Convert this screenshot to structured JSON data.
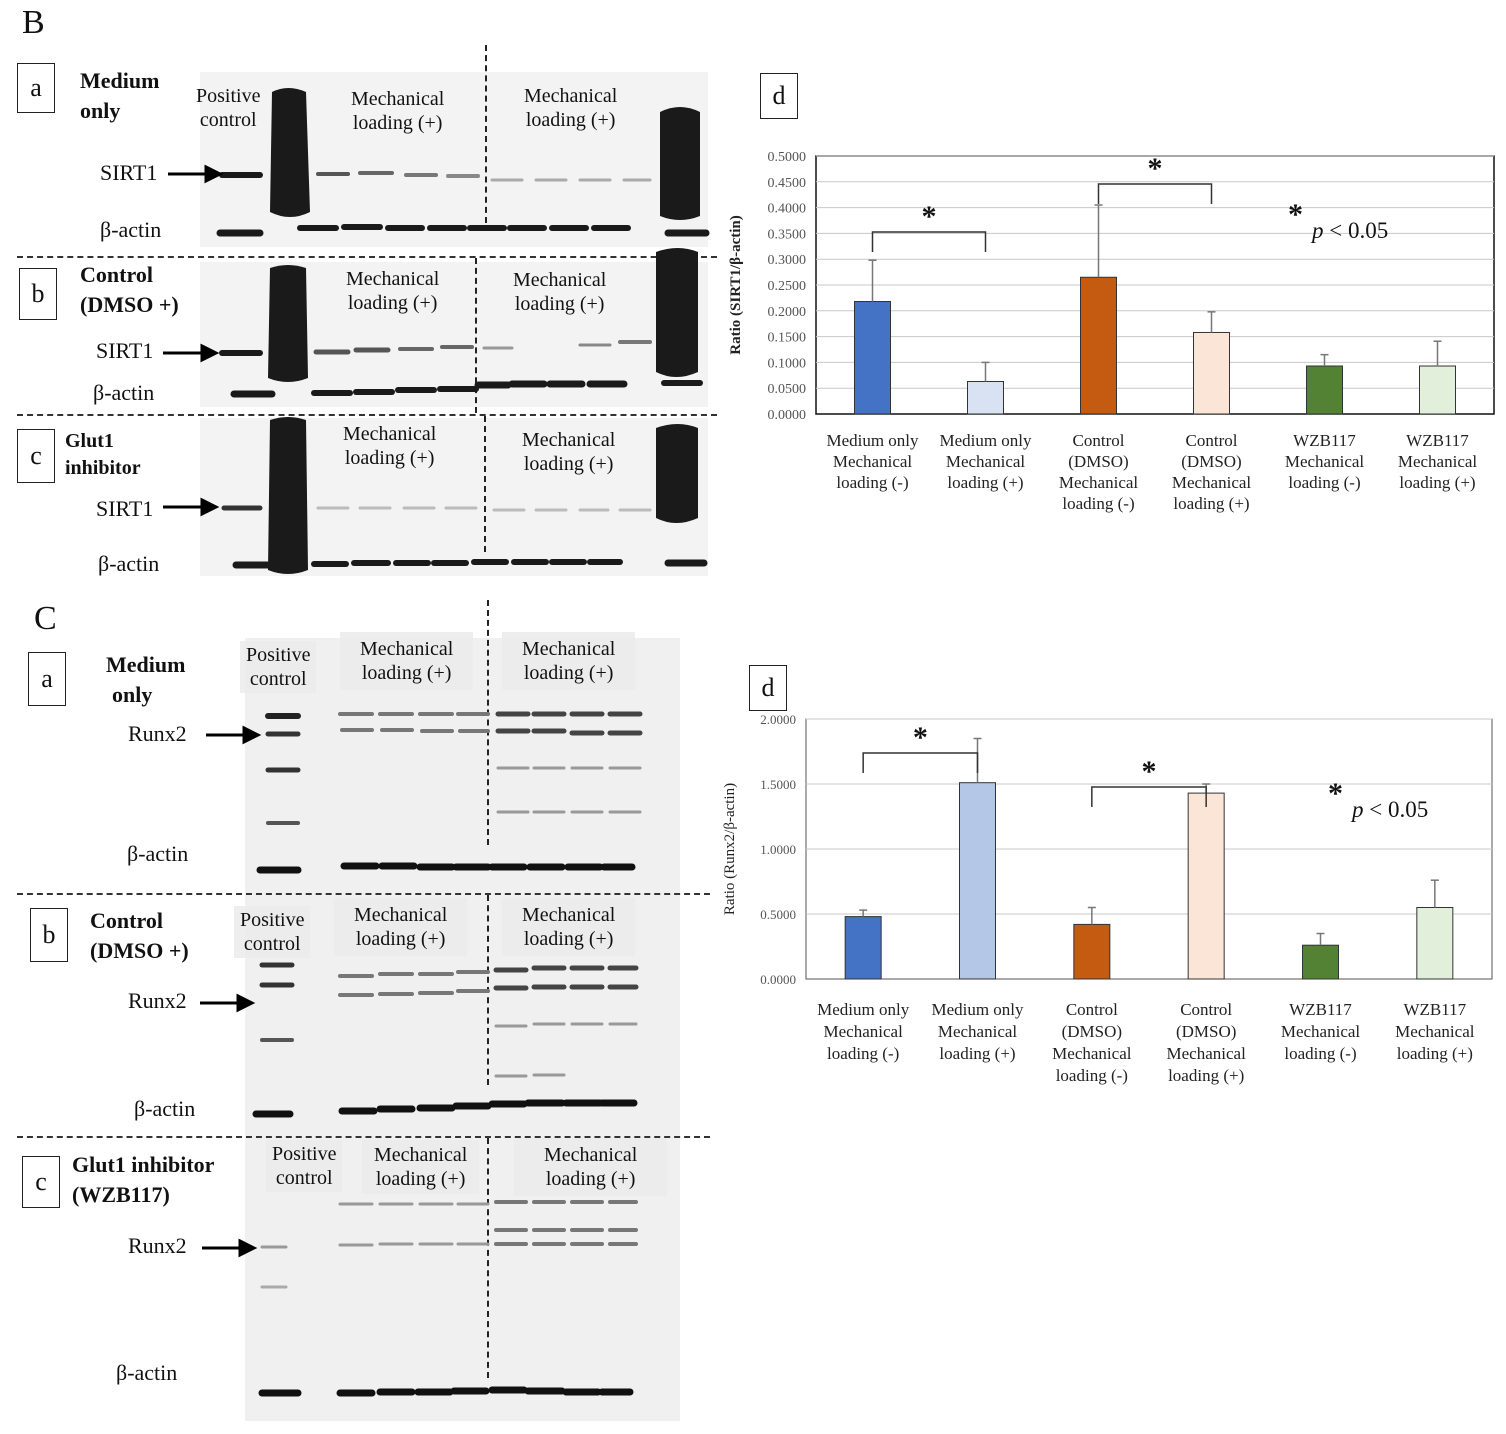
{
  "panels": {
    "B": {
      "letter": "B",
      "rows": [
        {
          "tag": "a",
          "condition": [
            "Medium",
            "only"
          ],
          "positive": [
            "Positive",
            "control"
          ],
          "left_group": [
            "Mechanical",
            "loading (+)"
          ],
          "right_group": [
            "Mechanical",
            "loading (+)"
          ],
          "target": "SIRT1",
          "actin": "β-actin"
        },
        {
          "tag": "b",
          "condition": [
            "Control",
            "(DMSO +)"
          ],
          "positive": [],
          "left_group": [
            "Mechanical",
            "loading (+)"
          ],
          "right_group": [
            "Mechanical",
            "loading (+)"
          ],
          "target": "SIRT1",
          "actin": "β-actin"
        },
        {
          "tag": "c",
          "condition": [
            "Glut1",
            "inhibitor"
          ],
          "positive": [],
          "left_group": [
            "Mechanical",
            "loading (+)"
          ],
          "right_group": [
            "Mechanical",
            "loading (+)"
          ],
          "target": "SIRT1",
          "actin": "β-actin"
        }
      ]
    },
    "C": {
      "letter": "C",
      "rows": [
        {
          "tag": "a",
          "condition": [
            "Medium",
            "only"
          ],
          "positive": [
            "Positive",
            "control"
          ],
          "left_group": [
            "Mechanical",
            "loading (+)"
          ],
          "right_group": [
            "Mechanical",
            "loading (+)"
          ],
          "target": "Runx2",
          "actin": "β-actin"
        },
        {
          "tag": "b",
          "condition": [
            "Control",
            "(DMSO +)"
          ],
          "positive": [
            "Positive",
            "control"
          ],
          "left_group": [
            "Mechanical",
            "loading (+)"
          ],
          "right_group": [
            "Mechanical",
            "loading (+)"
          ],
          "target": "Runx2",
          "actin": "β-actin"
        },
        {
          "tag": "c",
          "condition": [
            "Glut1 inhibitor",
            "(WZB117)"
          ],
          "positive": [
            "Positive",
            "control"
          ],
          "left_group": [
            "Mechanical",
            "loading (+)"
          ],
          "right_group": [
            "Mechanical",
            "loading (+)"
          ],
          "target": "Runx2",
          "actin": "β-actin"
        }
      ]
    }
  },
  "chart_data": [
    {
      "type": "bar",
      "panel_tag": "d",
      "ylabel": "Ratio (SIRT1/β-actin)",
      "ylim": [
        0,
        0.5
      ],
      "yticks": [
        "0.0000",
        "0.0500",
        "0.1000",
        "0.1500",
        "0.2000",
        "0.2500",
        "0.3000",
        "0.3500",
        "0.4000",
        "0.4500",
        "0.5000"
      ],
      "categories": [
        [
          "Medium only",
          "Mechanical",
          "loading (-)"
        ],
        [
          "Medium only",
          "Mechanical",
          "loading (+)"
        ],
        [
          "Control",
          "(DMSO)",
          "Mechanical",
          "loading (-)"
        ],
        [
          "Control",
          "(DMSO)",
          "Mechanical",
          "loading (+)"
        ],
        [
          "WZB117",
          "Mechanical",
          "loading (-)"
        ],
        [
          "WZB117",
          "Mechanical",
          "loading (+)"
        ]
      ],
      "values": [
        0.218,
        0.063,
        0.265,
        0.158,
        0.093,
        0.093
      ],
      "errors": [
        0.08,
        0.037,
        0.14,
        0.04,
        0.022,
        0.048
      ],
      "colors": [
        "#4472C4",
        "#D9E2F3",
        "#C55A11",
        "#FBE5D6",
        "#548235",
        "#E2EFDA"
      ],
      "significance": [
        {
          "from": 0,
          "to": 1,
          "label": "*"
        },
        {
          "from": 2,
          "to": 3,
          "label": "*"
        }
      ],
      "annotation": {
        "star": "*",
        "p": "p",
        "text": " < 0.05"
      },
      "grid": true
    },
    {
      "type": "bar",
      "panel_tag": "d",
      "ylabel": "Ratio (Runx2/β-actin)",
      "ylim": [
        0,
        2.0
      ],
      "yticks": [
        "0.0000",
        "0.5000",
        "1.0000",
        "1.5000",
        "2.0000"
      ],
      "categories": [
        [
          "Medium only",
          "Mechanical",
          "loading (-)"
        ],
        [
          "Medium only",
          "Mechanical",
          "loading (+)"
        ],
        [
          "Control",
          "(DMSO)",
          "Mechanical",
          "loading (-)"
        ],
        [
          "Control",
          "(DMSO)",
          "Mechanical",
          "loading (+)"
        ],
        [
          "WZB117",
          "Mechanical",
          "loading (-)"
        ],
        [
          "WZB117",
          "Mechanical",
          "loading (+)"
        ]
      ],
      "values": [
        0.48,
        1.51,
        0.42,
        1.43,
        0.26,
        0.55
      ],
      "errors": [
        0.05,
        0.34,
        0.13,
        0.07,
        0.09,
        0.21
      ],
      "colors": [
        "#4472C4",
        "#B4C7E7",
        "#C55A11",
        "#FBE5D6",
        "#548235",
        "#E2EFDA"
      ],
      "significance": [
        {
          "from": 0,
          "to": 1,
          "label": "*"
        },
        {
          "from": 2,
          "to": 3,
          "label": "*"
        }
      ],
      "annotation": {
        "star": "*",
        "p": "p",
        "text": " < 0.05"
      },
      "grid": true
    }
  ]
}
